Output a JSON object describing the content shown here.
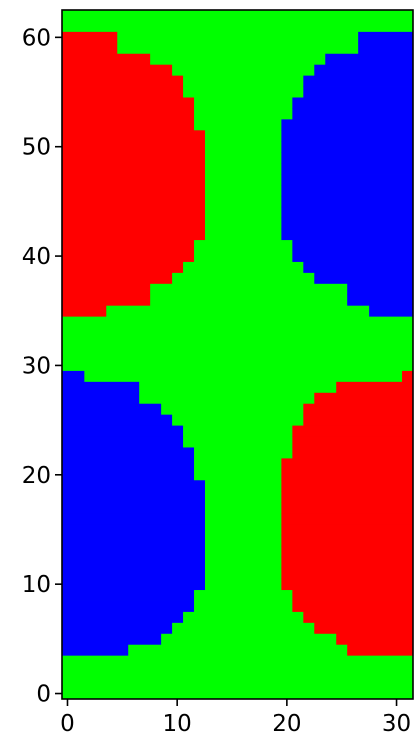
{
  "chart_data": {
    "type": "heatmap",
    "title": "",
    "xlabel": "",
    "ylabel": "",
    "xlim": [
      -0.5,
      31.5
    ],
    "ylim": [
      -0.5,
      62.5
    ],
    "x_ticks": [
      0,
      10,
      20,
      30
    ],
    "y_ticks": [
      0,
      10,
      20,
      30,
      40,
      50,
      60
    ],
    "x_tick_labels": [
      "0",
      "10",
      "20",
      "30"
    ],
    "y_tick_labels": [
      "0",
      "10",
      "20",
      "30",
      "40",
      "50",
      "60"
    ],
    "grid": false,
    "legend": "none",
    "background_color": "#00ff00",
    "regions": [
      {
        "color": "#ff0000",
        "rows": [
          {
            "y": 35,
            "x0": 0,
            "x1": 3
          },
          {
            "y": 36,
            "x0": 0,
            "x1": 7
          },
          {
            "y": 37,
            "x0": 0,
            "x1": 7
          },
          {
            "y": 38,
            "x0": 0,
            "x1": 9
          },
          {
            "y": 39,
            "x0": 0,
            "x1": 10
          },
          {
            "y": 40,
            "x0": 0,
            "x1": 11
          },
          {
            "y": 41,
            "x0": 0,
            "x1": 11
          },
          {
            "y": 42,
            "x0": 0,
            "x1": 12
          },
          {
            "y": 43,
            "x0": 0,
            "x1": 12
          },
          {
            "y": 44,
            "x0": 0,
            "x1": 12
          },
          {
            "y": 45,
            "x0": 0,
            "x1": 12
          },
          {
            "y": 46,
            "x0": 0,
            "x1": 12
          },
          {
            "y": 47,
            "x0": 0,
            "x1": 12
          },
          {
            "y": 48,
            "x0": 0,
            "x1": 12
          },
          {
            "y": 49,
            "x0": 0,
            "x1": 12
          },
          {
            "y": 50,
            "x0": 0,
            "x1": 12
          },
          {
            "y": 51,
            "x0": 0,
            "x1": 12
          },
          {
            "y": 52,
            "x0": 0,
            "x1": 11
          },
          {
            "y": 53,
            "x0": 0,
            "x1": 11
          },
          {
            "y": 54,
            "x0": 0,
            "x1": 11
          },
          {
            "y": 55,
            "x0": 0,
            "x1": 10
          },
          {
            "y": 56,
            "x0": 0,
            "x1": 10
          },
          {
            "y": 57,
            "x0": 0,
            "x1": 9
          },
          {
            "y": 58,
            "x0": 0,
            "x1": 7
          },
          {
            "y": 59,
            "x0": 0,
            "x1": 4
          },
          {
            "y": 60,
            "x0": 0,
            "x1": 4
          }
        ]
      },
      {
        "color": "#0000ff",
        "rows": [
          {
            "y": 35,
            "x0": 28,
            "x1": 31
          },
          {
            "y": 36,
            "x0": 26,
            "x1": 31
          },
          {
            "y": 37,
            "x0": 26,
            "x1": 31
          },
          {
            "y": 38,
            "x0": 23,
            "x1": 31
          },
          {
            "y": 39,
            "x0": 22,
            "x1": 31
          },
          {
            "y": 40,
            "x0": 21,
            "x1": 31
          },
          {
            "y": 41,
            "x0": 21,
            "x1": 31
          },
          {
            "y": 42,
            "x0": 20,
            "x1": 31
          },
          {
            "y": 43,
            "x0": 20,
            "x1": 31
          },
          {
            "y": 44,
            "x0": 20,
            "x1": 31
          },
          {
            "y": 45,
            "x0": 20,
            "x1": 31
          },
          {
            "y": 46,
            "x0": 20,
            "x1": 31
          },
          {
            "y": 47,
            "x0": 20,
            "x1": 31
          },
          {
            "y": 48,
            "x0": 20,
            "x1": 31
          },
          {
            "y": 49,
            "x0": 20,
            "x1": 31
          },
          {
            "y": 50,
            "x0": 20,
            "x1": 31
          },
          {
            "y": 51,
            "x0": 20,
            "x1": 31
          },
          {
            "y": 52,
            "x0": 20,
            "x1": 31
          },
          {
            "y": 53,
            "x0": 21,
            "x1": 31
          },
          {
            "y": 54,
            "x0": 21,
            "x1": 31
          },
          {
            "y": 55,
            "x0": 22,
            "x1": 31
          },
          {
            "y": 56,
            "x0": 22,
            "x1": 31
          },
          {
            "y": 57,
            "x0": 23,
            "x1": 31
          },
          {
            "y": 58,
            "x0": 24,
            "x1": 31
          },
          {
            "y": 59,
            "x0": 27,
            "x1": 31
          },
          {
            "y": 60,
            "x0": 27,
            "x1": 31
          }
        ]
      },
      {
        "color": "#0000ff",
        "rows": [
          {
            "y": 4,
            "x0": 0,
            "x1": 5
          },
          {
            "y": 5,
            "x0": 0,
            "x1": 8
          },
          {
            "y": 6,
            "x0": 0,
            "x1": 9
          },
          {
            "y": 7,
            "x0": 0,
            "x1": 10
          },
          {
            "y": 8,
            "x0": 0,
            "x1": 11
          },
          {
            "y": 9,
            "x0": 0,
            "x1": 11
          },
          {
            "y": 10,
            "x0": 0,
            "x1": 12
          },
          {
            "y": 11,
            "x0": 0,
            "x1": 12
          },
          {
            "y": 12,
            "x0": 0,
            "x1": 12
          },
          {
            "y": 13,
            "x0": 0,
            "x1": 12
          },
          {
            "y": 14,
            "x0": 0,
            "x1": 12
          },
          {
            "y": 15,
            "x0": 0,
            "x1": 12
          },
          {
            "y": 16,
            "x0": 0,
            "x1": 12
          },
          {
            "y": 17,
            "x0": 0,
            "x1": 12
          },
          {
            "y": 18,
            "x0": 0,
            "x1": 12
          },
          {
            "y": 19,
            "x0": 0,
            "x1": 12
          },
          {
            "y": 20,
            "x0": 0,
            "x1": 11
          },
          {
            "y": 21,
            "x0": 0,
            "x1": 11
          },
          {
            "y": 22,
            "x0": 0,
            "x1": 11
          },
          {
            "y": 23,
            "x0": 0,
            "x1": 10
          },
          {
            "y": 24,
            "x0": 0,
            "x1": 10
          },
          {
            "y": 25,
            "x0": 0,
            "x1": 9
          },
          {
            "y": 26,
            "x0": 0,
            "x1": 8
          },
          {
            "y": 27,
            "x0": 0,
            "x1": 6
          },
          {
            "y": 28,
            "x0": 0,
            "x1": 6
          },
          {
            "y": 29,
            "x0": 0,
            "x1": 1
          }
        ]
      },
      {
        "color": "#ff0000",
        "rows": [
          {
            "y": 4,
            "x0": 26,
            "x1": 31
          },
          {
            "y": 5,
            "x0": 25,
            "x1": 31
          },
          {
            "y": 6,
            "x0": 23,
            "x1": 31
          },
          {
            "y": 7,
            "x0": 22,
            "x1": 31
          },
          {
            "y": 8,
            "x0": 21,
            "x1": 31
          },
          {
            "y": 9,
            "x0": 21,
            "x1": 31
          },
          {
            "y": 10,
            "x0": 20,
            "x1": 31
          },
          {
            "y": 11,
            "x0": 20,
            "x1": 31
          },
          {
            "y": 12,
            "x0": 20,
            "x1": 31
          },
          {
            "y": 13,
            "x0": 20,
            "x1": 31
          },
          {
            "y": 14,
            "x0": 20,
            "x1": 31
          },
          {
            "y": 15,
            "x0": 20,
            "x1": 31
          },
          {
            "y": 16,
            "x0": 20,
            "x1": 31
          },
          {
            "y": 17,
            "x0": 20,
            "x1": 31
          },
          {
            "y": 18,
            "x0": 20,
            "x1": 31
          },
          {
            "y": 19,
            "x0": 20,
            "x1": 31
          },
          {
            "y": 20,
            "x0": 20,
            "x1": 31
          },
          {
            "y": 21,
            "x0": 20,
            "x1": 31
          },
          {
            "y": 22,
            "x0": 21,
            "x1": 31
          },
          {
            "y": 23,
            "x0": 21,
            "x1": 31
          },
          {
            "y": 24,
            "x0": 21,
            "x1": 31
          },
          {
            "y": 25,
            "x0": 22,
            "x1": 31
          },
          {
            "y": 26,
            "x0": 22,
            "x1": 31
          },
          {
            "y": 27,
            "x0": 23,
            "x1": 31
          },
          {
            "y": 28,
            "x0": 25,
            "x1": 31
          },
          {
            "y": 29,
            "x0": 31,
            "x1": 31
          }
        ]
      }
    ]
  }
}
